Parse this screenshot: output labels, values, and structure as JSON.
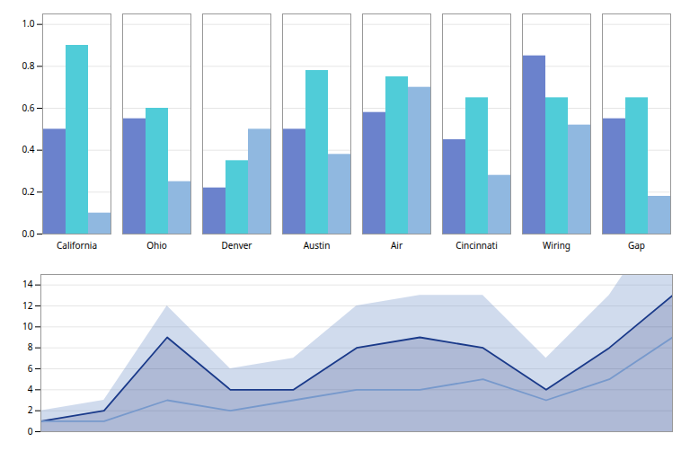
{
  "chart_data": [
    {
      "type": "bar",
      "categories": [
        "California",
        "Ohio",
        "Denver",
        "Austin",
        "Air",
        "Cincinnati",
        "Wiring",
        "Gap"
      ],
      "series": [
        {
          "color": "#6b82cc",
          "values": [
            0.5,
            0.55,
            0.22,
            0.5,
            0.58,
            0.45,
            0.85,
            0.55
          ]
        },
        {
          "color": "#50ccd8",
          "values": [
            0.9,
            0.6,
            0.35,
            0.78,
            0.75,
            0.65,
            0.65,
            0.65
          ]
        },
        {
          "color": "#90b8e0",
          "values": [
            0.1,
            0.25,
            0.5,
            0.38,
            0.7,
            0.28,
            0.52,
            0.18
          ]
        }
      ],
      "ylim": [
        0,
        1.05
      ],
      "yticks": [
        {
          "value": 0,
          "label": "0.0"
        },
        0.2,
        0.4,
        0.6,
        0.8,
        {
          "value": 1,
          "label": "1.0"
        }
      ],
      "grid": true
    },
    {
      "type": "area",
      "x": [
        0,
        1,
        2,
        3,
        4,
        5,
        6,
        7,
        8,
        9,
        10
      ],
      "series": [
        {
          "color": "#1a3a8a",
          "values": [
            1,
            2,
            9,
            4,
            4,
            8,
            9,
            8,
            4,
            8,
            13
          ]
        },
        {
          "color": "#7799cc",
          "values": [
            1,
            1,
            3,
            2,
            3,
            4,
            4,
            5,
            3,
            5,
            9
          ]
        }
      ],
      "xlim": [
        0,
        10
      ],
      "ylim": [
        0,
        15
      ],
      "yticks": [
        0,
        2,
        4,
        6,
        8,
        10,
        12,
        14
      ],
      "grid": true,
      "tick_labels": "y"
    }
  ]
}
